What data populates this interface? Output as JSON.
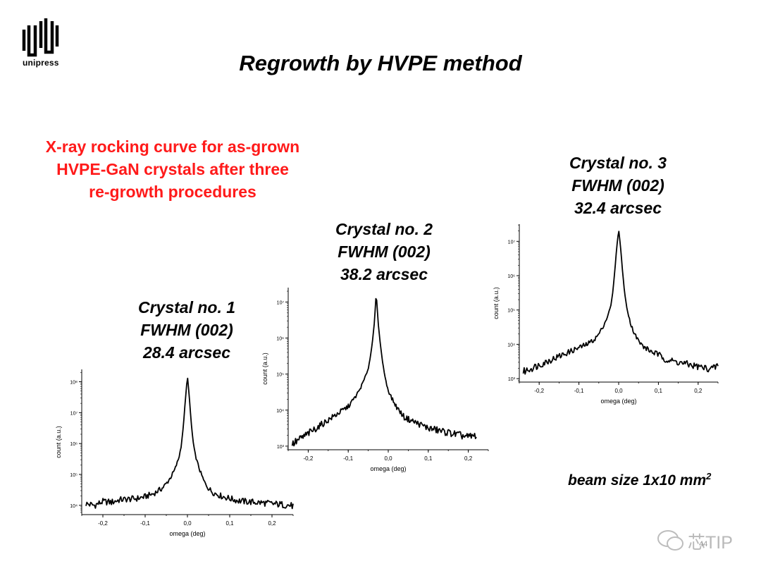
{
  "logo": {
    "text": "unipress"
  },
  "slide": {
    "title": "Regrowth by HVPE method",
    "subtitle_lines": [
      "X-ray rocking curve for as-grown",
      "HVPE-GaN crystals after three",
      "re-growth procedures"
    ],
    "beam_text": "beam size 1x10 mm",
    "beam_sup": "2",
    "watermark": "芯TIP",
    "page_number": "44"
  },
  "captions": [
    {
      "crystal": "Crystal no. 1",
      "fwhm": "FWHM (002)",
      "value": "28.4 arcsec"
    },
    {
      "crystal": "Crystal no. 2",
      "fwhm": "FWHM (002)",
      "value": "38.2 arcsec"
    },
    {
      "crystal": "Crystal no. 3",
      "fwhm": "FWHM (002)",
      "value": "32.4 arcsec"
    }
  ],
  "chart_data": [
    {
      "type": "line",
      "title": "Crystal no. 1",
      "xlabel": "omega (deg)",
      "ylabel": "count (a.u.)",
      "log_y": true,
      "xlim": [
        -0.25,
        0.25
      ],
      "ylim_log10": [
        3.7,
        8.4
      ],
      "xticks": [
        -0.2,
        -0.1,
        0.0,
        0.1,
        0.2
      ],
      "xtick_labels": [
        "-0,2",
        "-0,1",
        "0,0",
        "0,1",
        "0,2"
      ],
      "yticks_log10": [
        4,
        5,
        6,
        7,
        8
      ],
      "ytick_labels": [
        "10⁴",
        "10⁵",
        "10⁶",
        "10⁷",
        "10⁸"
      ],
      "grid": false,
      "series": [
        {
          "x": [
            -0.24,
            -0.22,
            -0.2,
            -0.18,
            -0.16,
            -0.14,
            -0.12,
            -0.1,
            -0.08,
            -0.06,
            -0.05,
            -0.04,
            -0.03,
            -0.02,
            -0.015,
            -0.01,
            -0.005,
            0.0,
            0.005,
            0.01,
            0.015,
            0.02,
            0.03,
            0.04,
            0.05,
            0.06,
            0.08,
            0.1,
            0.12,
            0.14,
            0.16,
            0.18,
            0.2,
            0.22,
            0.24,
            0.25
          ],
          "y_log10": [
            4.05,
            4.0,
            4.12,
            4.1,
            4.18,
            4.2,
            4.22,
            4.28,
            4.38,
            4.55,
            4.7,
            4.9,
            5.15,
            5.55,
            5.9,
            6.5,
            7.4,
            8.2,
            7.4,
            6.5,
            5.9,
            5.55,
            5.1,
            4.75,
            4.55,
            4.42,
            4.3,
            4.22,
            4.15,
            4.12,
            4.1,
            4.08,
            4.05,
            4.03,
            4.0,
            3.98
          ]
        }
      ]
    },
    {
      "type": "line",
      "title": "Crystal no. 2",
      "xlabel": "omega (deg)",
      "ylabel": "count (a.u.)",
      "log_y": true,
      "xlim": [
        -0.25,
        0.25
      ],
      "ylim_log10": [
        2.9,
        7.4
      ],
      "xticks": [
        -0.2,
        -0.1,
        0.0,
        0.1,
        0.2
      ],
      "xtick_labels": [
        "-0,2",
        "-0,1",
        "0,0",
        "0,1",
        "0,2"
      ],
      "yticks_log10": [
        3,
        4,
        5,
        6,
        7
      ],
      "ytick_labels": [
        "10³",
        "10⁴",
        "10⁵",
        "10⁶",
        "10⁷"
      ],
      "grid": false,
      "series": [
        {
          "x": [
            -0.24,
            -0.22,
            -0.2,
            -0.18,
            -0.16,
            -0.14,
            -0.12,
            -0.1,
            -0.09,
            -0.08,
            -0.07,
            -0.06,
            -0.05,
            -0.045,
            -0.04,
            -0.035,
            -0.03,
            -0.025,
            -0.02,
            -0.015,
            -0.01,
            -0.005,
            0.0,
            0.01,
            0.02,
            0.03,
            0.04,
            0.06,
            0.08,
            0.1,
            0.12,
            0.14,
            0.16,
            0.18,
            0.2,
            0.22
          ],
          "y_log10": [
            3.05,
            3.2,
            3.35,
            3.5,
            3.65,
            3.8,
            3.95,
            4.1,
            4.25,
            4.4,
            4.6,
            4.85,
            5.15,
            5.45,
            5.85,
            6.4,
            7.25,
            6.4,
            5.85,
            5.4,
            5.05,
            4.75,
            4.55,
            4.3,
            4.1,
            3.95,
            3.8,
            3.7,
            3.6,
            3.5,
            3.45,
            3.4,
            3.35,
            3.3,
            3.25,
            3.3
          ]
        }
      ]
    },
    {
      "type": "line",
      "title": "Crystal no. 3",
      "xlabel": "omega (deg)",
      "ylabel": "count (a.u.)",
      "log_y": true,
      "xlim": [
        -0.25,
        0.25
      ],
      "ylim_log10": [
        2.9,
        7.5
      ],
      "xticks": [
        -0.2,
        -0.1,
        0.0,
        0.1,
        0.2
      ],
      "xtick_labels": [
        "-0,2",
        "-0,1",
        "0,0",
        "0,1",
        "0,2"
      ],
      "yticks_log10": [
        3,
        4,
        5,
        6,
        7
      ],
      "ytick_labels": [
        "10³",
        "10⁴",
        "10⁵",
        "10⁶",
        "10⁷"
      ],
      "grid": false,
      "series": [
        {
          "x": [
            -0.24,
            -0.22,
            -0.2,
            -0.18,
            -0.16,
            -0.14,
            -0.12,
            -0.1,
            -0.08,
            -0.06,
            -0.05,
            -0.04,
            -0.03,
            -0.02,
            -0.015,
            -0.01,
            -0.005,
            0.0,
            0.005,
            0.01,
            0.015,
            0.02,
            0.03,
            0.04,
            0.05,
            0.06,
            0.08,
            0.1,
            0.12,
            0.14,
            0.16,
            0.18,
            0.2,
            0.22,
            0.24,
            0.25
          ],
          "y_log10": [
            3.2,
            3.3,
            3.4,
            3.5,
            3.6,
            3.7,
            3.8,
            3.9,
            4.0,
            4.15,
            4.3,
            4.5,
            4.75,
            5.1,
            5.5,
            6.1,
            6.8,
            7.35,
            6.8,
            6.1,
            5.5,
            5.1,
            4.6,
            4.3,
            4.1,
            3.95,
            3.8,
            3.7,
            3.55,
            3.5,
            3.45,
            3.4,
            3.35,
            3.3,
            3.3,
            3.4
          ]
        }
      ]
    }
  ]
}
